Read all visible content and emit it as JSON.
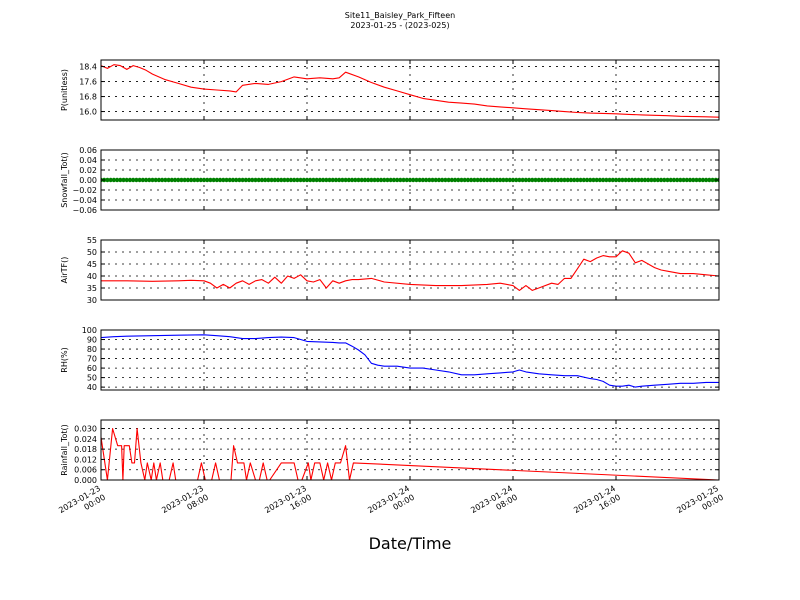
{
  "figure": {
    "title": "Site11_Baisley_Park_Fifteen",
    "subtitle": "2023-01-25 - (2023-025)",
    "xlabel": "Date/Time",
    "x_ticks": [
      {
        "value": 0,
        "line1": "2023-01-23",
        "line2": "00:00"
      },
      {
        "value": 8,
        "line1": "2023-01-23",
        "line2": "08:00"
      },
      {
        "value": 16,
        "line1": "2023-01-23",
        "line2": "16:00"
      },
      {
        "value": 24,
        "line1": "2023-01-24",
        "line2": "00:00"
      },
      {
        "value": 32,
        "line1": "2023-01-24",
        "line2": "08:00"
      },
      {
        "value": 40,
        "line1": "2023-01-24",
        "line2": "16:00"
      },
      {
        "value": 48,
        "line1": "2023-01-25",
        "line2": "00:00"
      }
    ]
  },
  "chart_data": [
    {
      "type": "line",
      "ylabel": "P(unitless)",
      "ylim": [
        15.55,
        18.75
      ],
      "yticks": [
        16.0,
        16.8,
        17.6,
        18.4
      ],
      "ytick_labels": [
        "16.0",
        "16.8",
        "17.6",
        "18.4"
      ],
      "xlim": [
        0,
        48
      ],
      "grid": true,
      "series": [
        {
          "color": "#ff0000",
          "x": [
            0,
            0.5,
            1,
            1.5,
            2,
            2.5,
            3,
            3.5,
            4,
            5,
            6,
            7,
            8,
            9,
            10,
            10.5,
            11,
            12,
            13,
            14,
            15,
            16,
            17,
            18,
            18.5,
            19,
            20,
            21,
            22,
            23,
            24,
            25,
            26,
            27,
            28,
            29,
            30,
            31,
            32,
            33,
            34,
            35,
            36,
            37,
            38,
            39,
            40,
            41,
            42,
            43,
            44,
            45,
            46,
            47,
            48
          ],
          "y": [
            18.45,
            18.3,
            18.5,
            18.45,
            18.25,
            18.45,
            18.35,
            18.2,
            18.0,
            17.7,
            17.5,
            17.3,
            17.2,
            17.15,
            17.1,
            17.05,
            17.4,
            17.5,
            17.45,
            17.6,
            17.85,
            17.75,
            17.8,
            17.75,
            17.8,
            18.1,
            17.85,
            17.55,
            17.3,
            17.1,
            16.9,
            16.7,
            16.6,
            16.5,
            16.45,
            16.4,
            16.3,
            16.25,
            16.2,
            16.15,
            16.1,
            16.05,
            16.0,
            15.95,
            15.92,
            15.9,
            15.88,
            15.85,
            15.82,
            15.8,
            15.78,
            15.75,
            15.73,
            15.72,
            15.7
          ]
        }
      ]
    },
    {
      "type": "scatter",
      "ylabel": "Snowfall_Tot()",
      "ylim": [
        -0.06,
        0.06
      ],
      "yticks": [
        -0.06,
        -0.04,
        -0.02,
        0.0,
        0.02,
        0.04,
        0.06
      ],
      "ytick_labels": [
        "−0.06",
        "−0.04",
        "−0.02",
        "0.00",
        "0.02",
        "0.04",
        "0.06"
      ],
      "xlim": [
        0,
        48
      ],
      "grid": true,
      "series": [
        {
          "color": "#008000",
          "x_start": 0,
          "x_end": 48,
          "x_step": 0.25,
          "value": 0.0
        }
      ]
    },
    {
      "type": "line",
      "ylabel": "AirTF()",
      "ylim": [
        30,
        55
      ],
      "yticks": [
        30,
        35,
        40,
        45,
        50,
        55
      ],
      "ytick_labels": [
        "30",
        "35",
        "40",
        "45",
        "50",
        "55"
      ],
      "xlim": [
        0,
        48
      ],
      "grid": true,
      "series": [
        {
          "color": "#ff0000",
          "x": [
            0,
            2,
            4,
            6,
            7,
            8,
            8.5,
            9,
            9.5,
            10,
            10.5,
            11,
            11.5,
            12,
            12.5,
            13,
            13.5,
            14,
            14.5,
            15,
            15.5,
            16,
            16.5,
            17,
            17.5,
            18,
            18.5,
            19,
            19.5,
            20,
            21,
            22,
            24,
            26,
            28,
            30,
            31,
            32,
            32.5,
            33,
            33.5,
            34,
            35,
            35.5,
            36,
            36.5,
            37,
            37.5,
            38,
            38.5,
            39,
            39.5,
            40,
            40.5,
            41,
            41.5,
            42,
            42.5,
            43,
            43.5,
            44,
            45,
            46,
            47,
            48
          ],
          "y": [
            38,
            38,
            37.8,
            38,
            38.2,
            38,
            37,
            35,
            36.5,
            35,
            37,
            38,
            36.5,
            38,
            38.5,
            37,
            39.5,
            37,
            40,
            39,
            40.5,
            38,
            37.5,
            38.5,
            35,
            38,
            37,
            38,
            38.5,
            38.5,
            39,
            37.5,
            36.5,
            36,
            36,
            36.5,
            37,
            36,
            34,
            36,
            34,
            35,
            37,
            36.5,
            39,
            39,
            43,
            47,
            46,
            47.5,
            48.5,
            48,
            48,
            50.5,
            49.5,
            45.5,
            46.5,
            45,
            43.5,
            42.5,
            42,
            41,
            41,
            40.5,
            40
          ]
        }
      ]
    },
    {
      "type": "line",
      "ylabel": "RH(%)",
      "ylim": [
        37,
        100
      ],
      "yticks": [
        40,
        50,
        60,
        70,
        80,
        90,
        100
      ],
      "ytick_labels": [
        "40",
        "50",
        "60",
        "70",
        "80",
        "90",
        "100"
      ],
      "xlim": [
        0,
        48
      ],
      "grid": true,
      "series": [
        {
          "color": "#0000ff",
          "x": [
            0,
            1,
            2,
            4,
            6,
            8,
            9,
            10,
            11,
            12,
            13,
            14,
            15,
            15.5,
            16,
            17,
            18,
            18.5,
            19,
            19.5,
            20,
            20.5,
            21,
            21.5,
            22,
            23,
            24,
            25,
            26,
            27,
            28,
            29,
            30,
            31,
            32,
            32.5,
            33,
            34,
            35,
            36,
            37,
            38,
            38.5,
            39,
            39.5,
            40,
            40.5,
            41,
            41.5,
            42,
            43,
            44,
            45,
            46,
            47,
            48
          ],
          "y": [
            92,
            93,
            93.5,
            94,
            94.5,
            95,
            94,
            93,
            91,
            91,
            92,
            92.5,
            92,
            90,
            88,
            87.5,
            87,
            86.5,
            86.5,
            83,
            79,
            74,
            65,
            63,
            62,
            62,
            60,
            60,
            58,
            56,
            53,
            53,
            54,
            55,
            56,
            58,
            56,
            54,
            53,
            52,
            52,
            49,
            48,
            46,
            42,
            41,
            41,
            42,
            40,
            41,
            42,
            43,
            44,
            44,
            45,
            45
          ]
        }
      ]
    },
    {
      "type": "line",
      "ylabel": "Rainfall_Tot()",
      "ylim": [
        0,
        0.035
      ],
      "yticks": [
        0.0,
        0.006,
        0.012,
        0.018,
        0.024,
        0.03
      ],
      "ytick_labels": [
        "0.000",
        "0.006",
        "0.012",
        "0.018",
        "0.024",
        "0.030"
      ],
      "xlim": [
        0,
        48
      ],
      "grid": true,
      "series": [
        {
          "color": "#ff0000",
          "x": [
            0,
            0.5,
            0.9,
            1.3,
            1.6,
            1.7,
            1.8,
            2.0,
            2.2,
            2.4,
            2.6,
            2.8,
            3.1,
            3.4,
            3.6,
            3.9,
            4.1,
            4.3,
            4.6,
            4.8,
            5.1,
            5.3,
            5.6,
            5.8,
            6.0,
            6.3,
            7.5,
            7.8,
            8.1,
            8.6,
            8.9,
            9.2,
            10.1,
            10.3,
            10.6,
            11.1,
            11.3,
            11.6,
            12.0,
            12.3,
            12.6,
            12.9,
            13.1,
            14.0,
            14.3,
            14.6,
            15.0,
            15.3,
            15.6,
            16.1,
            16.3,
            16.6,
            17.0,
            17.3,
            17.6,
            17.9,
            18.2,
            18.6,
            19.0,
            19.3,
            19.6,
            48
          ],
          "y": [
            0.025,
            0,
            0.03,
            0.02,
            0.02,
            0,
            0.02,
            0.02,
            0.02,
            0.01,
            0.01,
            0.03,
            0.01,
            0,
            0.01,
            0,
            0.01,
            0,
            0.01,
            0,
            0,
            0,
            0.01,
            0,
            0,
            0,
            0,
            0.01,
            0,
            0,
            0.01,
            0,
            0,
            0.02,
            0.01,
            0.01,
            0,
            0.01,
            0,
            0,
            0.01,
            0,
            0,
            0.01,
            0.01,
            0.01,
            0.01,
            0,
            0,
            0.01,
            0,
            0.01,
            0.01,
            0,
            0.01,
            0,
            0.01,
            0.01,
            0.02,
            0,
            0.01,
            0
          ]
        }
      ]
    }
  ]
}
